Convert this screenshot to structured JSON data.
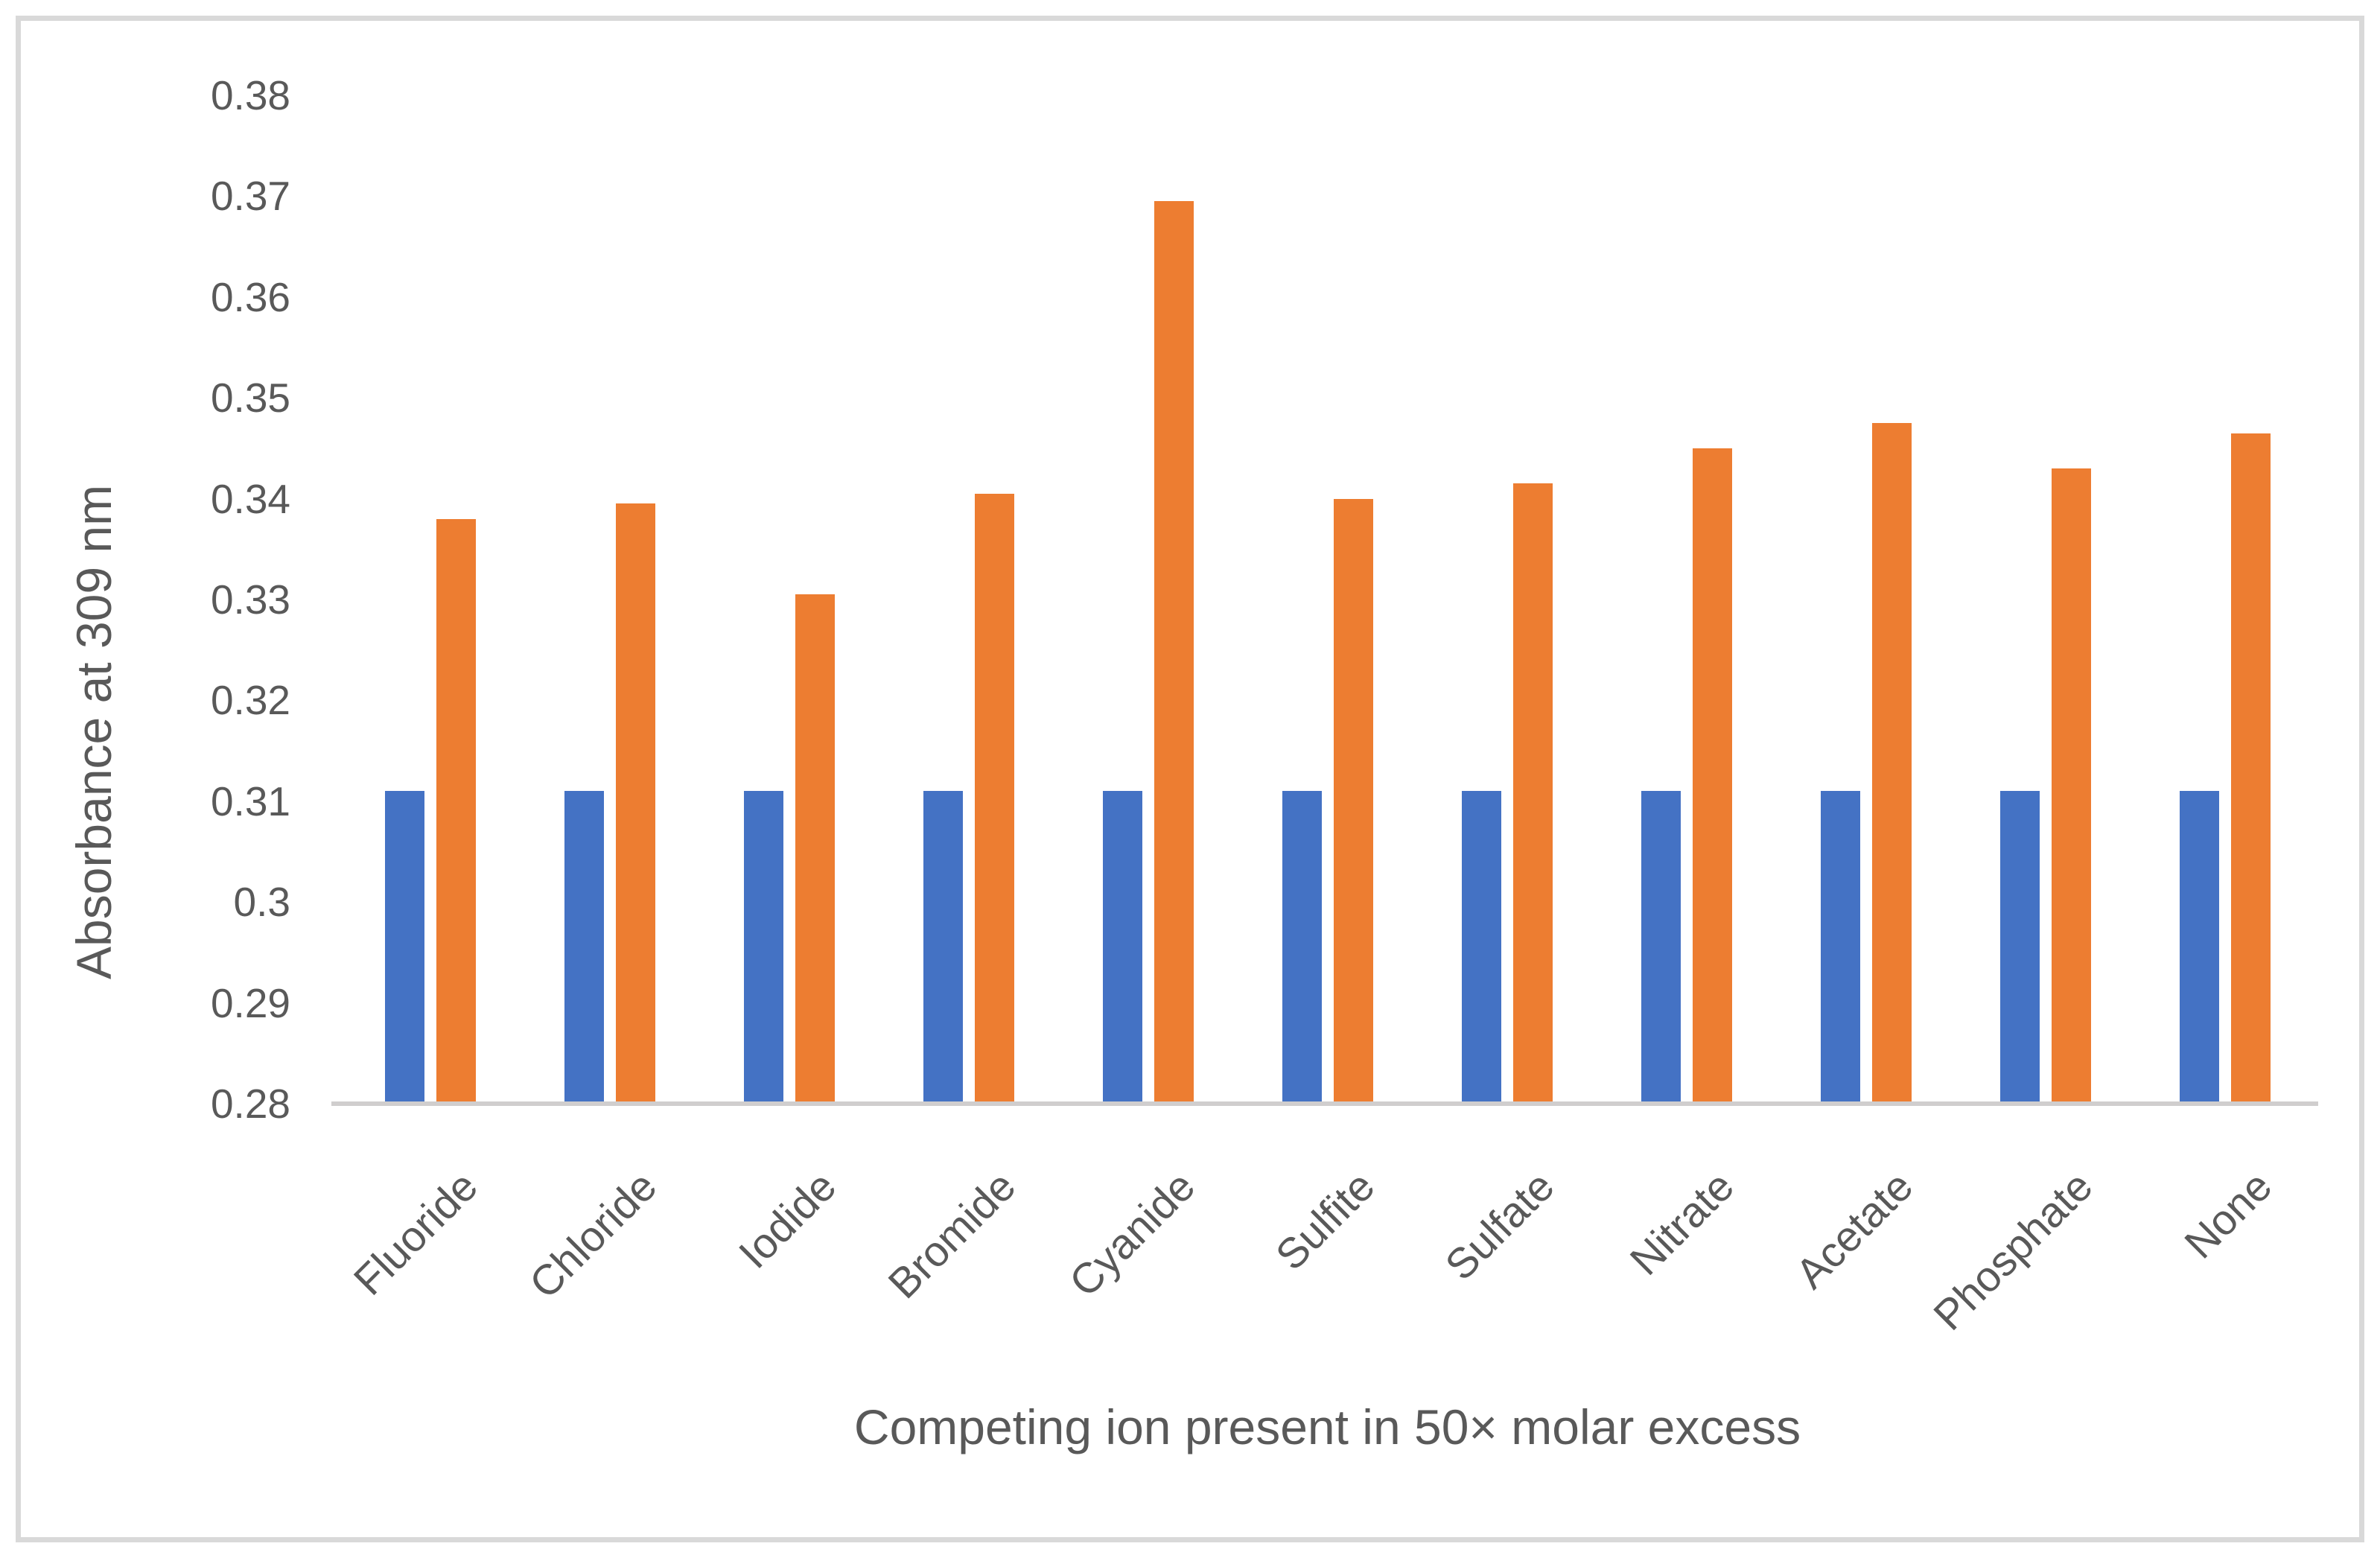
{
  "figure": {
    "background": "#FFFFFF",
    "border_color": "#D9D9D9"
  },
  "y_axis": {
    "title": "Absorbance at 309 nm",
    "tick_labels": [
      "0.38",
      "0.37",
      "0.36",
      "0.35",
      "0.34",
      "0.33",
      "0.32",
      "0.31",
      "0.3",
      "0.29",
      "0.28"
    ],
    "text_color": "#595959",
    "axis_line_color": "#D0CECE"
  },
  "x_axis": {
    "title": "Competing ion present in 50× molar excess",
    "text_color": "#595959"
  },
  "chart_data": {
    "type": "bar",
    "title": "",
    "xlabel": "Competing ion present in 50× molar excess",
    "ylabel": "Absorbance at 309 nm",
    "categories": [
      "Fluoride",
      "Chloride",
      "Iodide",
      "Bromide",
      "Cyanide",
      "Sulfite",
      "Sulfate",
      "Nitrate",
      "Acetate",
      "Phosphate",
      "None"
    ],
    "series": [
      {
        "name": "blue",
        "color": "#4472C4",
        "values": [
          0.311,
          0.311,
          0.311,
          0.311,
          0.311,
          0.311,
          0.311,
          0.311,
          0.311,
          0.311,
          0.311
        ]
      },
      {
        "name": "orange",
        "color": "#ED7D31",
        "values": [
          0.338,
          0.3395,
          0.3305,
          0.3405,
          0.3695,
          0.34,
          0.3415,
          0.345,
          0.3475,
          0.343,
          0.3465
        ]
      }
    ],
    "ylim": [
      0.28,
      0.38
    ],
    "ytick_step": 0.01,
    "grid": false,
    "legend": "none"
  }
}
